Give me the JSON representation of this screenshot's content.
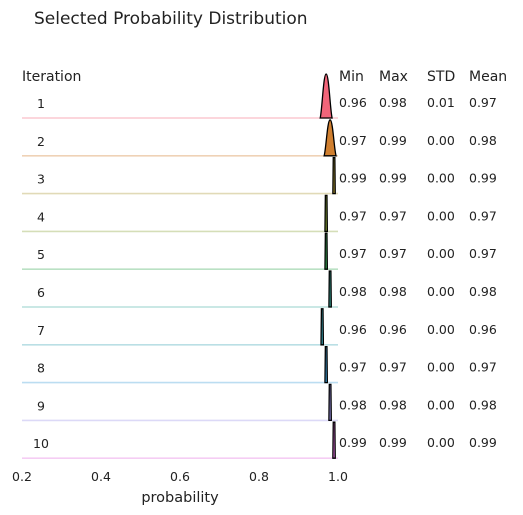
{
  "chart_data": {
    "type": "ridgeline",
    "title": "Selected Probability Distribution",
    "xlabel": "probability",
    "row_header": "Iteration",
    "columns": [
      "Min",
      "Max",
      "STD",
      "Mean"
    ],
    "xlim": [
      0.2,
      1.0
    ],
    "xticks": [
      "0.2",
      "0.4",
      "0.6",
      "0.8",
      "1.0"
    ],
    "rows": [
      {
        "iteration": "1",
        "min": "0.96",
        "max": "0.98",
        "std": "0.01",
        "mean": "0.97",
        "color": "#f2657a"
      },
      {
        "iteration": "2",
        "min": "0.97",
        "max": "0.99",
        "std": "0.00",
        "mean": "0.98",
        "color": "#d07f2f"
      },
      {
        "iteration": "3",
        "min": "0.99",
        "max": "0.99",
        "std": "0.00",
        "mean": "0.99",
        "color": "#a99532"
      },
      {
        "iteration": "4",
        "min": "0.97",
        "max": "0.97",
        "std": "0.00",
        "mean": "0.97",
        "color": "#86a035"
      },
      {
        "iteration": "5",
        "min": "0.97",
        "max": "0.97",
        "std": "0.00",
        "mean": "0.97",
        "color": "#38aa55"
      },
      {
        "iteration": "6",
        "min": "0.98",
        "max": "0.98",
        "std": "0.00",
        "mean": "0.98",
        "color": "#36a89a"
      },
      {
        "iteration": "7",
        "min": "0.96",
        "max": "0.96",
        "std": "0.00",
        "mean": "0.96",
        "color": "#38a4b5"
      },
      {
        "iteration": "8",
        "min": "0.97",
        "max": "0.97",
        "std": "0.00",
        "mean": "0.97",
        "color": "#3d9fd6"
      },
      {
        "iteration": "9",
        "min": "0.98",
        "max": "0.98",
        "std": "0.00",
        "mean": "0.98",
        "color": "#9b92e8"
      },
      {
        "iteration": "10",
        "min": "0.99",
        "max": "0.99",
        "std": "0.00",
        "mean": "0.99",
        "color": "#e36fe0"
      }
    ]
  }
}
